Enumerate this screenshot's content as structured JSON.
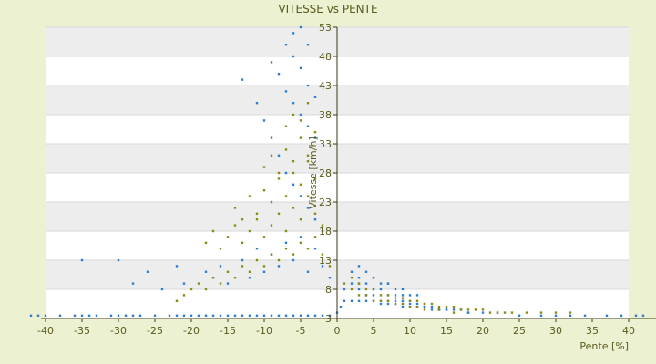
{
  "chart_data": {
    "type": "scatter",
    "title": "VITESSE vs PENTE",
    "xlabel": "Pente [%]",
    "ylabel": "Vitesse [km/h]",
    "xlim": [
      -40,
      40
    ],
    "ylim": [
      3,
      53
    ],
    "x_ticks": [
      -40,
      -35,
      -30,
      -25,
      -20,
      -15,
      -10,
      -5,
      0,
      5,
      10,
      15,
      20,
      25,
      30,
      35,
      40
    ],
    "y_ticks": [
      3,
      8,
      13,
      18,
      23,
      28,
      33,
      38,
      43,
      48,
      53
    ],
    "grid": true,
    "legend": "none",
    "colors": {
      "series_blue": "#2e7fd0",
      "series_olive": "#8c8c14",
      "band": "#ededed",
      "axis_text": "#5b5b1c",
      "background": "#ecf1d2"
    },
    "series": [
      {
        "color": "#2e7fd0",
        "x": [
          -42,
          -41,
          -40,
          -38,
          -36,
          -35,
          -34,
          -33,
          -31,
          -30,
          -29,
          -28,
          -27,
          -25,
          -23,
          -22,
          -21,
          -20,
          -19,
          -18,
          -17,
          -16,
          -15,
          -14,
          -13,
          -12,
          -11,
          -10,
          -9,
          -8,
          -7,
          -6,
          -5,
          -4,
          -3,
          -2,
          -1,
          0,
          0.5,
          1,
          2,
          3,
          4,
          5,
          6,
          7,
          8,
          9,
          10,
          11,
          12,
          13,
          14,
          15,
          17,
          18,
          20,
          22,
          25,
          28,
          30,
          32,
          34,
          37,
          39,
          41,
          42,
          -35,
          -30,
          -28,
          -26,
          -24,
          -22,
          -21,
          -18,
          -17,
          -16,
          -15,
          -13,
          -12,
          -11,
          -10,
          -9,
          -8,
          -7,
          -6,
          -5,
          -4,
          -3,
          -2,
          -1,
          -13,
          -11,
          -10,
          -9,
          -8,
          -7,
          -6,
          -5,
          -4,
          -3,
          -2,
          -9,
          -8,
          -7,
          -6,
          -5,
          -4,
          -3,
          -7,
          -6,
          -5,
          -4,
          -3,
          -6,
          -5,
          -4,
          2,
          3,
          4,
          5,
          6,
          7,
          8,
          9,
          10,
          11,
          12,
          13,
          14,
          15,
          16,
          18,
          2,
          3,
          4,
          5,
          6,
          7,
          8,
          9,
          10,
          11,
          12,
          3,
          4,
          5,
          6,
          7,
          8,
          9,
          10,
          1,
          3,
          5,
          7,
          9,
          11
        ],
        "y": [
          3.5,
          3.5,
          3.5,
          3.5,
          3.5,
          3.5,
          3.5,
          3.5,
          3.5,
          3.5,
          3.5,
          3.5,
          3.5,
          3.5,
          3.5,
          3.5,
          3.5,
          3.5,
          3.5,
          3.5,
          3.5,
          3.5,
          3.5,
          3.5,
          3.5,
          3.5,
          3.5,
          3.5,
          3.5,
          3.5,
          3.5,
          3.5,
          3.5,
          3.5,
          3.5,
          3.5,
          3.5,
          4,
          5,
          6,
          6,
          6,
          6,
          6,
          5.5,
          5.5,
          5.5,
          5,
          5,
          5,
          5,
          4.5,
          4.5,
          4.5,
          4.5,
          4,
          4,
          4,
          3.5,
          3.5,
          3.5,
          3.5,
          3.5,
          3.5,
          3.5,
          3.5,
          3.5,
          13,
          13,
          9,
          11,
          8,
          12,
          9,
          11,
          10,
          12,
          9,
          13,
          10,
          15,
          11,
          14,
          12,
          16,
          13,
          17,
          11,
          15,
          12,
          10,
          44,
          40,
          37,
          34,
          31,
          28,
          26,
          24,
          22,
          20,
          18,
          47,
          45,
          42,
          40,
          38,
          36,
          34,
          50,
          48,
          46,
          43,
          41,
          52,
          53,
          50,
          9,
          8,
          7,
          7,
          6,
          6,
          6,
          5.5,
          5.5,
          5,
          5,
          5,
          4.5,
          4.5,
          4.5,
          4,
          11,
          10,
          9,
          8,
          8,
          7,
          7,
          6,
          6,
          5.5,
          5.5,
          12,
          11,
          10,
          9,
          9,
          8,
          7,
          7,
          8,
          9,
          10,
          9,
          8,
          7
        ]
      },
      {
        "color": "#8c8c14",
        "x": [
          -22,
          -21,
          -20,
          -19,
          -18,
          -17,
          -16,
          -15,
          -14,
          -13,
          -12,
          -11,
          -10,
          -9,
          -8,
          -7,
          -6,
          -5,
          -4,
          -3,
          -2,
          -1,
          -18,
          -17,
          -16,
          -15,
          -14,
          -13,
          -12,
          -11,
          -10,
          -9,
          -8,
          -7,
          -6,
          -5,
          -4,
          -3,
          -2,
          -14,
          -13,
          -12,
          -11,
          -10,
          -9,
          -8,
          -7,
          -6,
          -5,
          -4,
          -3,
          -10,
          -9,
          -8,
          -7,
          -6,
          -5,
          -4,
          -3,
          -7,
          -6,
          -5,
          -4,
          1,
          2,
          3,
          4,
          5,
          6,
          7,
          8,
          9,
          10,
          11,
          12,
          13,
          14,
          15,
          16,
          17,
          18,
          19,
          20,
          21,
          22,
          23,
          24,
          26,
          28,
          30,
          32,
          2,
          3,
          4,
          5,
          6,
          7,
          8,
          9,
          10,
          11,
          12,
          14,
          16
        ],
        "y": [
          6,
          7,
          8,
          9,
          8,
          10,
          9,
          11,
          10,
          12,
          11,
          13,
          12,
          14,
          13,
          15,
          14,
          16,
          15,
          17,
          14,
          12,
          16,
          18,
          15,
          17,
          19,
          16,
          18,
          20,
          17,
          19,
          21,
          18,
          22,
          20,
          24,
          21,
          19,
          22,
          20,
          24,
          21,
          25,
          23,
          27,
          24,
          28,
          26,
          30,
          27,
          29,
          31,
          28,
          32,
          30,
          34,
          31,
          35,
          36,
          38,
          37,
          40,
          9,
          10,
          9,
          8,
          8,
          7,
          7,
          6.5,
          6.5,
          6,
          6,
          5.5,
          5.5,
          5,
          5,
          5,
          4.5,
          4.5,
          4.5,
          4.5,
          4,
          4,
          4,
          4,
          4,
          4,
          4,
          4,
          8,
          7,
          7,
          6,
          6,
          6,
          5.5,
          5.5,
          5,
          5,
          4.5,
          4.5,
          4
        ]
      }
    ]
  }
}
